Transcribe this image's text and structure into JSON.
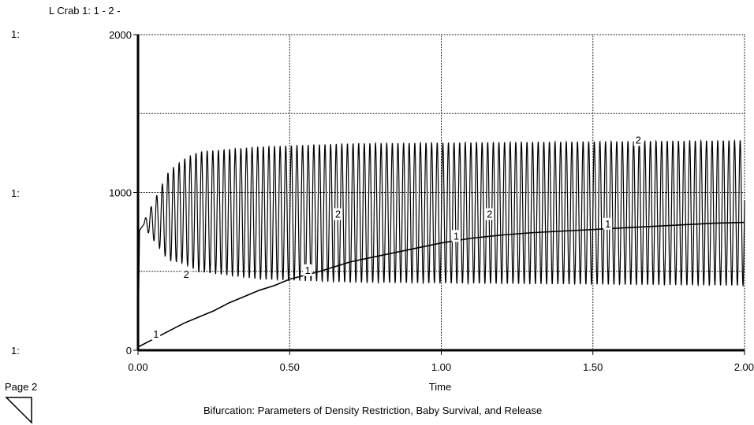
{
  "header": {
    "title": "L Crab 1:  1 - 2 -"
  },
  "axis_prefix": "1:",
  "footer": {
    "page_label": "Page 2",
    "caption": "Bifurcation: Parameters of Density Restriction, Baby Survival, and Release"
  },
  "chart_data": {
    "type": "line",
    "title": "",
    "xlabel": "Time",
    "ylabel": "",
    "xlim": [
      0,
      2
    ],
    "ylim": [
      0,
      2000
    ],
    "x_ticks": [
      0,
      0.5,
      1,
      1.5,
      2
    ],
    "x_tick_labels": [
      "0.00",
      "0.50",
      "1.00",
      "1.50",
      "2.00"
    ],
    "y_ticks": [
      0,
      1000,
      2000
    ],
    "y_tick_labels": [
      "0",
      "1000",
      "2000"
    ],
    "grid": true,
    "series": [
      {
        "label": "1",
        "x": [
          0,
          0.05,
          0.1,
          0.15,
          0.2,
          0.25,
          0.3,
          0.35,
          0.4,
          0.45,
          0.5,
          0.6,
          0.7,
          0.8,
          0.9,
          1.0,
          1.1,
          1.2,
          1.3,
          1.4,
          1.5,
          1.6,
          1.7,
          1.8,
          1.9,
          2.0
        ],
        "y": [
          20,
          70,
          120,
          170,
          210,
          250,
          300,
          340,
          380,
          410,
          450,
          500,
          560,
          600,
          640,
          680,
          710,
          730,
          745,
          755,
          765,
          775,
          785,
          795,
          805,
          810
        ],
        "label_x": [
          0.05,
          0.55,
          1.04,
          1.54
        ]
      },
      {
        "label": "2",
        "oscillation": {
          "x_start": 0.02,
          "x_end": 2.0,
          "period": 0.0185,
          "center": [
            [
              0.02,
              800
            ],
            [
              0.15,
              880
            ],
            [
              0.4,
              870
            ],
            [
              1.0,
              870
            ],
            [
              2.0,
              870
            ]
          ],
          "amplitude": [
            [
              0.02,
              20
            ],
            [
              0.1,
              280
            ],
            [
              0.2,
              380
            ],
            [
              0.4,
              420
            ],
            [
              0.7,
              440
            ],
            [
              1.0,
              445
            ],
            [
              2.0,
              460
            ]
          ]
        },
        "label_points": [
          [
            0.15,
            450
          ],
          [
            0.65,
            830
          ],
          [
            1.15,
            830
          ],
          [
            1.64,
            1300
          ]
        ]
      }
    ]
  }
}
